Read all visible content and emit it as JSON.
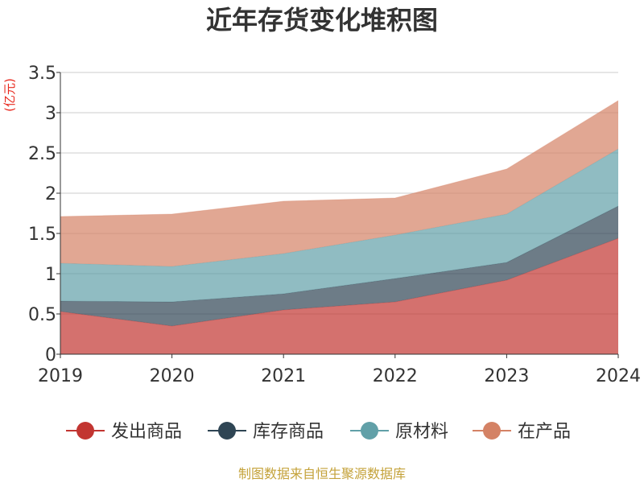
{
  "chart_data": {
    "type": "area",
    "stacked": true,
    "title": "近年存货变化堆积图",
    "ylabel": "(亿元)",
    "xlabel": "",
    "x": [
      "2019",
      "2020",
      "2021",
      "2022",
      "2023",
      "2024"
    ],
    "ylim": [
      0,
      3.5
    ],
    "yticks": [
      "0",
      "0.5",
      "1",
      "1.5",
      "2",
      "2.5",
      "3",
      "3.5"
    ],
    "grid": true,
    "legend_position": "bottom",
    "series": [
      {
        "name": "发出商品",
        "color": "#c23531",
        "values": [
          0.53,
          0.35,
          0.55,
          0.65,
          0.92,
          1.44
        ]
      },
      {
        "name": "库存商品",
        "color": "#2f4554",
        "values": [
          0.13,
          0.3,
          0.2,
          0.29,
          0.22,
          0.4
        ]
      },
      {
        "name": "原材料",
        "color": "#61a0a8",
        "values": [
          0.47,
          0.44,
          0.5,
          0.54,
          0.6,
          0.71
        ]
      },
      {
        "name": "在产品",
        "color": "#d48265",
        "values": [
          0.58,
          0.65,
          0.65,
          0.46,
          0.56,
          0.6
        ]
      }
    ]
  },
  "footer": {
    "source": "制图数据来自恒生聚源数据库"
  }
}
